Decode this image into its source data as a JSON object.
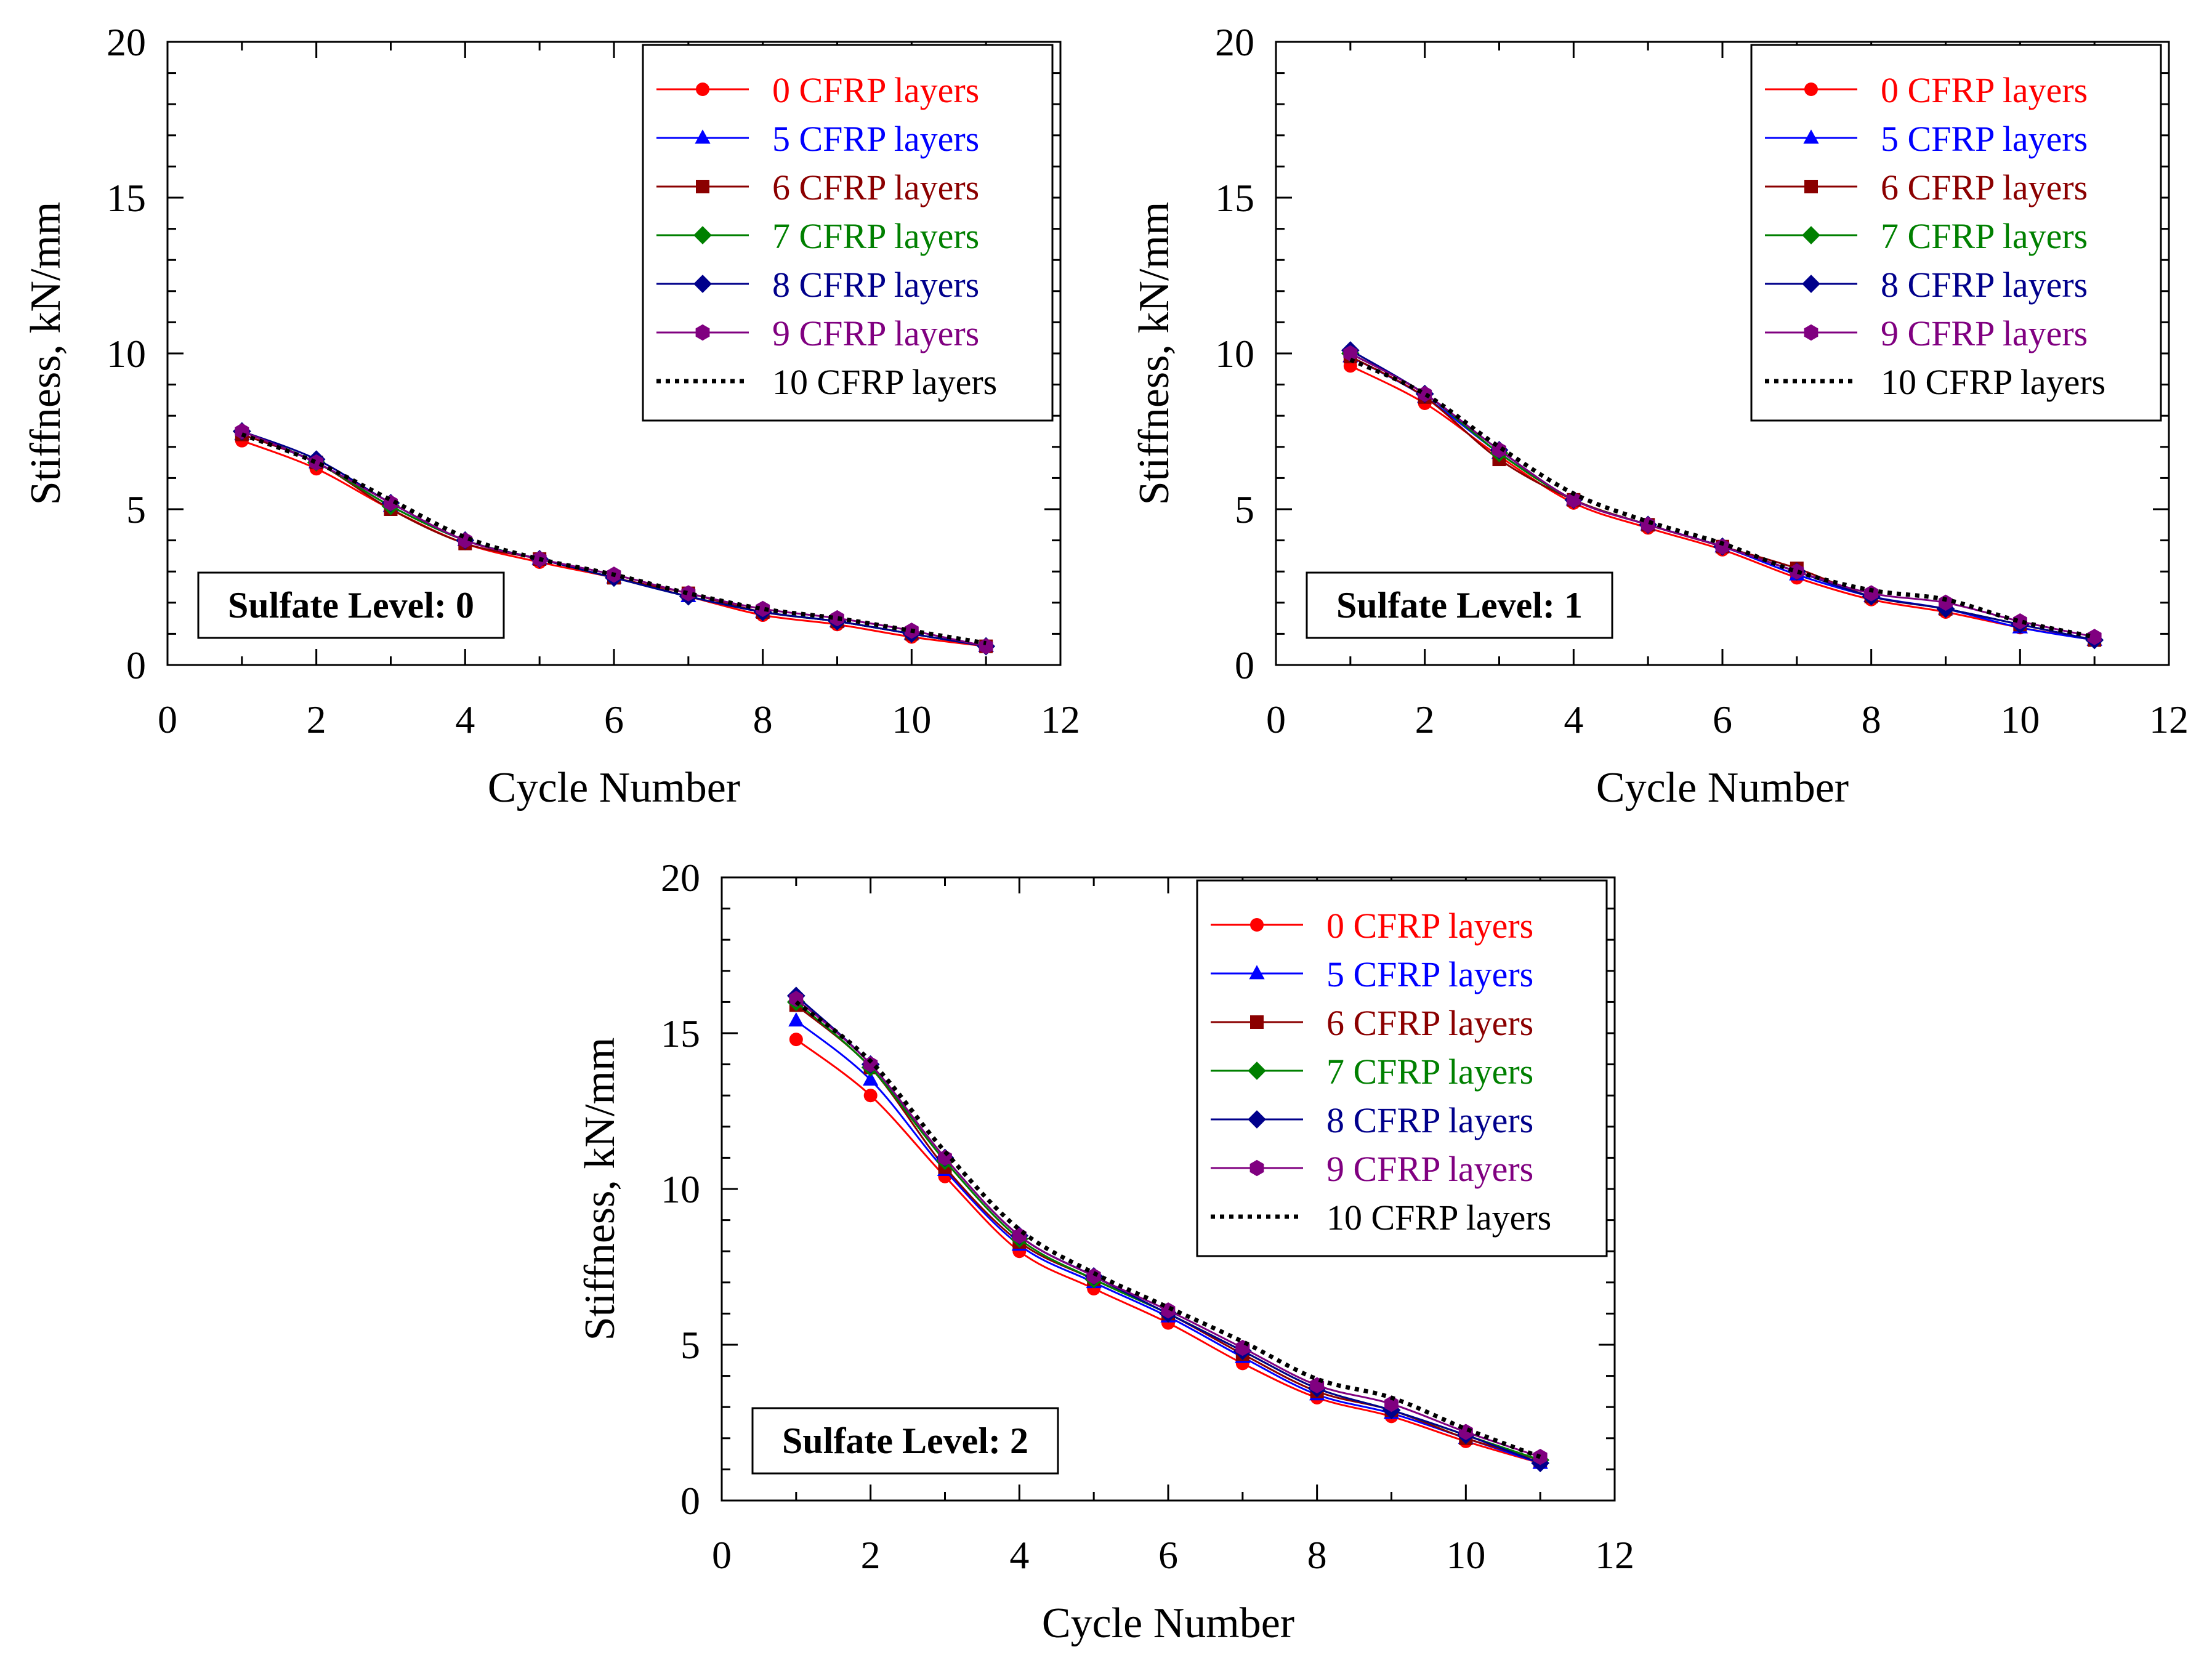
{
  "chart_data": [
    {
      "type": "line",
      "title": "",
      "annotation": "Sulfate Level: 0",
      "xlabel": "Cycle Number",
      "ylabel": "Stiffness, kN/mm",
      "xlim": [
        0,
        12
      ],
      "ylim": [
        0,
        20
      ],
      "xticks": [
        "0",
        "2",
        "4",
        "6",
        "8",
        "10",
        "12"
      ],
      "yticks": [
        "0",
        "5",
        "10",
        "15",
        "20"
      ],
      "legend_position": "top-right",
      "x": [
        1,
        2,
        3,
        4,
        5,
        6,
        7,
        8,
        9,
        10,
        11
      ],
      "series": [
        {
          "name": "0 CFRP layers",
          "color": "#ff0000",
          "marker": "circle",
          "values": [
            7.2,
            6.3,
            5.0,
            3.9,
            3.3,
            2.8,
            2.2,
            1.6,
            1.3,
            0.9,
            0.6
          ]
        },
        {
          "name": "5 CFRP layers",
          "color": "#0000ff",
          "marker": "triangle",
          "values": [
            7.4,
            6.5,
            5.1,
            4.0,
            3.4,
            2.8,
            2.2,
            1.7,
            1.4,
            1.0,
            0.6
          ]
        },
        {
          "name": "6 CFRP layers",
          "color": "#8b0000",
          "marker": "square",
          "values": [
            7.4,
            6.5,
            5.0,
            3.9,
            3.4,
            2.8,
            2.3,
            1.7,
            1.4,
            1.0,
            0.6
          ]
        },
        {
          "name": "7 CFRP layers",
          "color": "#008000",
          "marker": "diamond",
          "values": [
            7.5,
            6.5,
            5.1,
            4.0,
            3.4,
            2.8,
            2.2,
            1.7,
            1.4,
            1.0,
            0.6
          ]
        },
        {
          "name": "8 CFRP layers",
          "color": "#00008b",
          "marker": "diamond",
          "values": [
            7.5,
            6.6,
            5.2,
            4.0,
            3.4,
            2.8,
            2.2,
            1.7,
            1.4,
            1.0,
            0.6
          ]
        },
        {
          "name": "9 CFRP layers",
          "color": "#800080",
          "marker": "hexagon",
          "values": [
            7.5,
            6.5,
            5.2,
            4.0,
            3.4,
            2.9,
            2.3,
            1.8,
            1.5,
            1.1,
            0.6
          ]
        },
        {
          "name": "10 CFRP layers",
          "color": "#000000",
          "marker": "none",
          "dashed": true,
          "values": [
            7.4,
            6.5,
            5.3,
            4.1,
            3.4,
            2.9,
            2.3,
            1.8,
            1.5,
            1.1,
            0.7
          ]
        }
      ]
    },
    {
      "type": "line",
      "title": "",
      "annotation": "Sulfate Level: 1",
      "xlabel": "Cycle Number",
      "ylabel": "Stiffness, kN/mm",
      "xlim": [
        0,
        12
      ],
      "ylim": [
        0,
        20
      ],
      "xticks": [
        "0",
        "2",
        "4",
        "6",
        "8",
        "10",
        "12"
      ],
      "yticks": [
        "0",
        "5",
        "10",
        "15",
        "20"
      ],
      "legend_position": "top-right",
      "x": [
        1,
        2,
        3,
        4,
        5,
        6,
        7,
        8,
        9,
        10,
        11
      ],
      "series": [
        {
          "name": "0 CFRP layers",
          "color": "#ff0000",
          "marker": "circle",
          "values": [
            9.6,
            8.4,
            6.7,
            5.2,
            4.4,
            3.7,
            2.8,
            2.1,
            1.7,
            1.2,
            0.8
          ]
        },
        {
          "name": "5 CFRP layers",
          "color": "#0000ff",
          "marker": "triangle",
          "values": [
            9.9,
            8.6,
            6.8,
            5.3,
            4.5,
            3.8,
            2.9,
            2.2,
            1.8,
            1.2,
            0.8
          ]
        },
        {
          "name": "6 CFRP layers",
          "color": "#8b0000",
          "marker": "square",
          "values": [
            9.9,
            8.6,
            6.6,
            5.3,
            4.5,
            3.8,
            3.1,
            2.2,
            1.8,
            1.3,
            0.8
          ]
        },
        {
          "name": "7 CFRP layers",
          "color": "#008000",
          "marker": "diamond",
          "values": [
            10.0,
            8.7,
            6.8,
            5.3,
            4.5,
            3.8,
            3.0,
            2.2,
            1.8,
            1.3,
            0.8
          ]
        },
        {
          "name": "8 CFRP layers",
          "color": "#00008b",
          "marker": "diamond",
          "values": [
            10.1,
            8.7,
            6.9,
            5.3,
            4.5,
            3.8,
            3.0,
            2.2,
            1.8,
            1.3,
            0.8
          ]
        },
        {
          "name": "9 CFRP layers",
          "color": "#800080",
          "marker": "hexagon",
          "values": [
            10.0,
            8.7,
            6.9,
            5.3,
            4.5,
            3.8,
            3.0,
            2.3,
            2.0,
            1.4,
            0.9
          ]
        },
        {
          "name": "10 CFRP layers",
          "color": "#000000",
          "marker": "none",
          "dashed": true,
          "values": [
            9.8,
            8.7,
            7.0,
            5.5,
            4.6,
            3.9,
            3.0,
            2.4,
            2.1,
            1.4,
            0.9
          ]
        }
      ]
    },
    {
      "type": "line",
      "title": "",
      "annotation": "Sulfate Level: 2",
      "xlabel": "Cycle Number",
      "ylabel": "Stiffness, kN/mm",
      "xlim": [
        0,
        12
      ],
      "ylim": [
        0,
        20
      ],
      "xticks": [
        "0",
        "2",
        "4",
        "6",
        "8",
        "10",
        "12"
      ],
      "yticks": [
        "0",
        "5",
        "10",
        "15",
        "20"
      ],
      "legend_position": "top-right",
      "x": [
        1,
        2,
        3,
        4,
        5,
        6,
        7,
        8,
        9,
        10,
        11
      ],
      "series": [
        {
          "name": "0 CFRP layers",
          "color": "#ff0000",
          "marker": "circle",
          "values": [
            14.8,
            13.0,
            10.4,
            8.0,
            6.8,
            5.7,
            4.4,
            3.3,
            2.7,
            1.9,
            1.2
          ]
        },
        {
          "name": "5 CFRP layers",
          "color": "#0000ff",
          "marker": "triangle",
          "values": [
            15.4,
            13.5,
            10.6,
            8.2,
            7.0,
            5.9,
            4.6,
            3.4,
            2.8,
            2.0,
            1.2
          ]
        },
        {
          "name": "6 CFRP layers",
          "color": "#8b0000",
          "marker": "square",
          "values": [
            15.9,
            13.9,
            10.7,
            8.3,
            7.1,
            6.0,
            4.7,
            3.5,
            2.9,
            2.0,
            1.3
          ]
        },
        {
          "name": "7 CFRP layers",
          "color": "#008000",
          "marker": "diamond",
          "values": [
            16.0,
            13.9,
            10.9,
            8.4,
            7.1,
            6.0,
            4.8,
            3.6,
            2.9,
            2.1,
            1.3
          ]
        },
        {
          "name": "8 CFRP layers",
          "color": "#00008b",
          "marker": "diamond",
          "values": [
            16.2,
            14.0,
            11.0,
            8.5,
            7.2,
            6.0,
            4.8,
            3.6,
            2.9,
            2.1,
            1.2
          ]
        },
        {
          "name": "9 CFRP layers",
          "color": "#800080",
          "marker": "hexagon",
          "values": [
            16.1,
            14.0,
            11.0,
            8.5,
            7.2,
            6.1,
            4.9,
            3.7,
            3.1,
            2.2,
            1.4
          ]
        },
        {
          "name": "10 CFRP layers",
          "color": "#000000",
          "marker": "none",
          "dashed": true,
          "values": [
            16.0,
            14.1,
            11.2,
            8.7,
            7.3,
            6.2,
            5.1,
            3.9,
            3.3,
            2.3,
            1.4
          ]
        }
      ]
    }
  ]
}
